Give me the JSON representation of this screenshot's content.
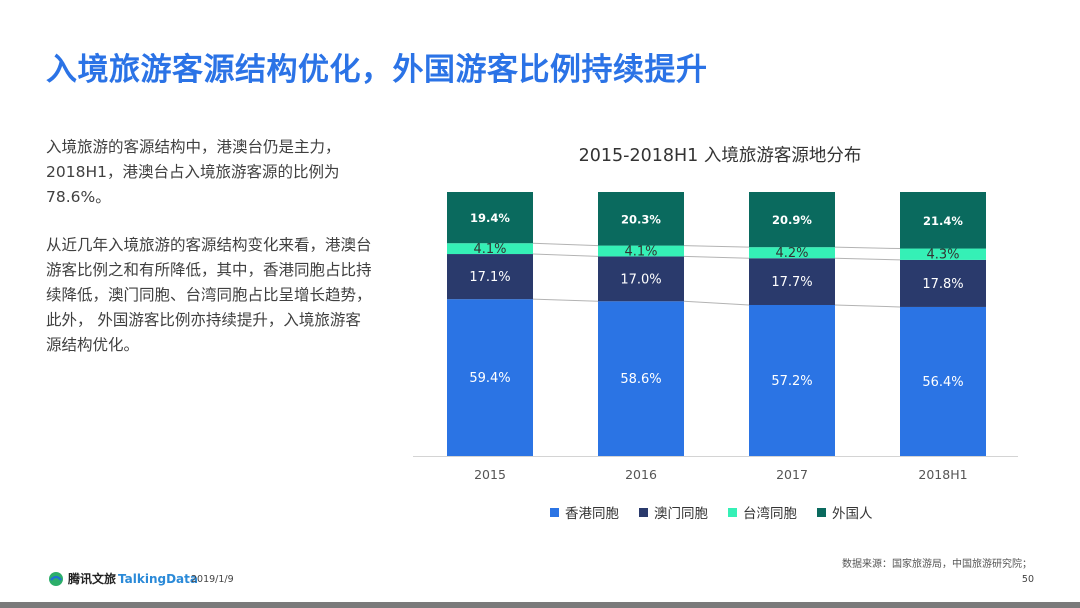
{
  "header": {
    "title": "入境旅游客源结构优化，外国游客比例持续提升"
  },
  "body": {
    "paragraph1": "入境旅游的客源结构中，港澳台仍是主力，2018H1，港澳台占入境旅游客源的比例为78.6%。",
    "paragraph2": "从近几年入境旅游的客源结构变化来看，港澳台游客比例之和有所降低，其中，香港同胞占比持续降低，澳门同胞、台湾同胞占比呈增长趋势，此外， 外国游客比例亦持续提升，入境旅游客源结构优化。"
  },
  "chart_data": {
    "type": "bar",
    "stacked": true,
    "normalized": true,
    "title": "2015-2018H1 入境旅游客源地分布",
    "categories": [
      "2015",
      "2016",
      "2017",
      "2018H1"
    ],
    "series": [
      {
        "name": "香港同胞",
        "color": "#2b74e4",
        "label_color": "#ffffff",
        "values": [
          59.4,
          58.6,
          57.2,
          56.4
        ],
        "labels": [
          "59.4%",
          "58.6%",
          "57.2%",
          "56.4%"
        ]
      },
      {
        "name": "澳门同胞",
        "color": "#2a3a6c",
        "label_color": "#ffffff",
        "values": [
          17.1,
          17.0,
          17.7,
          17.8
        ],
        "labels": [
          "17.1%",
          "17.0%",
          "17.7%",
          "17.8%"
        ]
      },
      {
        "name": "台湾同胞",
        "color": "#35f0b6",
        "label_color": "#333333",
        "values": [
          4.1,
          4.1,
          4.2,
          4.3
        ],
        "labels": [
          "4.1%",
          "4.1%",
          "4.2%",
          "4.3%"
        ]
      },
      {
        "name": "外国人",
        "color": "#0a6a5e",
        "label_color": "#ffffff",
        "values": [
          19.4,
          20.3,
          20.9,
          21.4
        ],
        "labels": [
          "19.4%",
          "20.3%",
          "20.9%",
          "21.4%"
        ]
      }
    ],
    "xlabel": "",
    "ylabel": "",
    "legend_position": "bottom",
    "series_lines": true
  },
  "footer": {
    "source": "数据来源：国家旅游局，中国旅游研究院；",
    "logo_tencent": "腾讯文旅",
    "logo_talkingdata": "TalkingData",
    "date": "2019/1/9",
    "page_number": "50"
  }
}
